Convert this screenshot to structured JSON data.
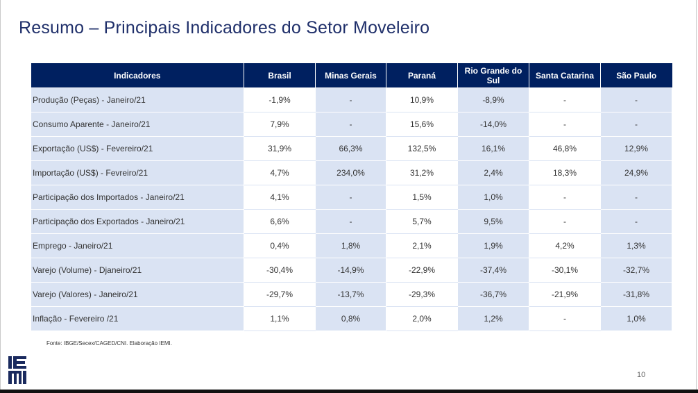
{
  "slide": {
    "title": "Resumo – Principais Indicadores do Setor Moveleiro",
    "source": "Fonte: IBGE/Secex/CAGED/CNI. Elaboração IEMI.",
    "page_number": "10",
    "logo_text": "IEMI"
  },
  "table": {
    "headers": [
      "Indicadores",
      "Brasil",
      "Minas Gerais",
      "Paraná",
      "Rio Grande do Sul",
      "Santa Catarina",
      "São Paulo"
    ],
    "rows": [
      [
        "Produção (Peças) - Janeiro/21",
        "-1,9%",
        "-",
        "10,9%",
        "-8,9%",
        "-",
        "-"
      ],
      [
        "Consumo Aparente - Janeiro/21",
        "7,9%",
        "-",
        "15,6%",
        "-14,0%",
        "-",
        "-"
      ],
      [
        "Exportação (US$) - Fevereiro/21",
        "31,9%",
        "66,3%",
        "132,5%",
        "16,1%",
        "46,8%",
        "12,9%"
      ],
      [
        "Importação (US$) - Fevreiro/21",
        "4,7%",
        "234,0%",
        "31,2%",
        "2,4%",
        "18,3%",
        "24,9%"
      ],
      [
        "Participação dos Importados - Janeiro/21",
        "4,1%",
        "-",
        "1,5%",
        "1,0%",
        "-",
        "-"
      ],
      [
        "Participação dos Exportados - Janeiro/21",
        "6,6%",
        "-",
        "5,7%",
        "9,5%",
        "-",
        "-"
      ],
      [
        "Emprego - Janeiro/21",
        "0,4%",
        "1,8%",
        "2,1%",
        "1,9%",
        "4,2%",
        "1,3%"
      ],
      [
        "Varejo (Volume) - Djaneiro/21",
        "-30,4%",
        "-14,9%",
        "-22,9%",
        "-37,4%",
        "-30,1%",
        "-32,7%"
      ],
      [
        "Varejo (Valores) - Janeiro/21",
        "-29,7%",
        "-13,7%",
        "-29,3%",
        "-36,7%",
        "-21,9%",
        "-31,8%"
      ],
      [
        "Inflação - Fevereiro /21",
        "1,1%",
        "0,8%",
        "2,0%",
        "1,2%",
        "-",
        "1,0%"
      ]
    ]
  },
  "colors": {
    "header_bg": "#002060",
    "title": "#1f2f6a",
    "band": "#dae3f3"
  }
}
